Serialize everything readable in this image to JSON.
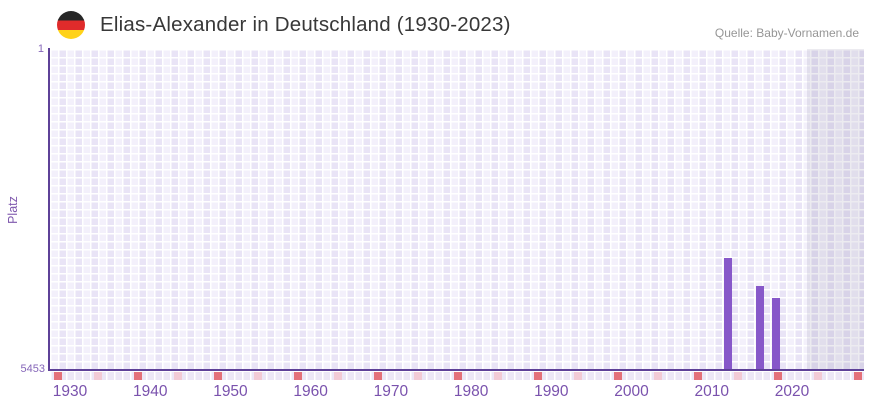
{
  "header": {
    "title": "Elias-Alexander in Deutschland (1930-2023)",
    "source": "Quelle: Baby-Vornamen.de",
    "flag_icon": "german-flag-icon"
  },
  "chart_data": {
    "type": "bar",
    "title": "Elias-Alexander in Deutschland (1930-2023)",
    "ylabel": "Platz",
    "y_top_label": "1",
    "y_bottom_label": "5453",
    "y_min": 1,
    "y_max": 5453,
    "y_inverted": true,
    "x_range": [
      1930,
      2023
    ],
    "x_tick_labels": [
      "1930",
      "1940",
      "1950",
      "1960",
      "1970",
      "1980",
      "1990",
      "2000",
      "2010",
      "2020"
    ],
    "series": [
      {
        "name": "Platz",
        "points": [
          {
            "year": 2012,
            "rank": 3550
          },
          {
            "year": 2016,
            "rank": 4020
          },
          {
            "year": 2018,
            "rank": 4230
          }
        ]
      }
    ],
    "grid": "checkerboard",
    "legend": "none",
    "shaded_band_years": [
      2022,
      2023
    ]
  },
  "colors": {
    "bar": "#8758c9",
    "axis_line": "#5e4198",
    "axis_text": "#7a52ad",
    "y_axis_text": "#8566b8",
    "tick_major": "#e47179",
    "tick_minor": "#f3cbd5",
    "plot_cell_light": "#f3f0fb",
    "plot_cell_dark": "#e9e4f6",
    "shaded_band": "rgba(108,102,138,0.13)",
    "title_text": "#383838",
    "source_text": "#969696",
    "flag_black": "#272727",
    "flag_red": "#e02b2b",
    "flag_gold": "#ffd21a"
  }
}
